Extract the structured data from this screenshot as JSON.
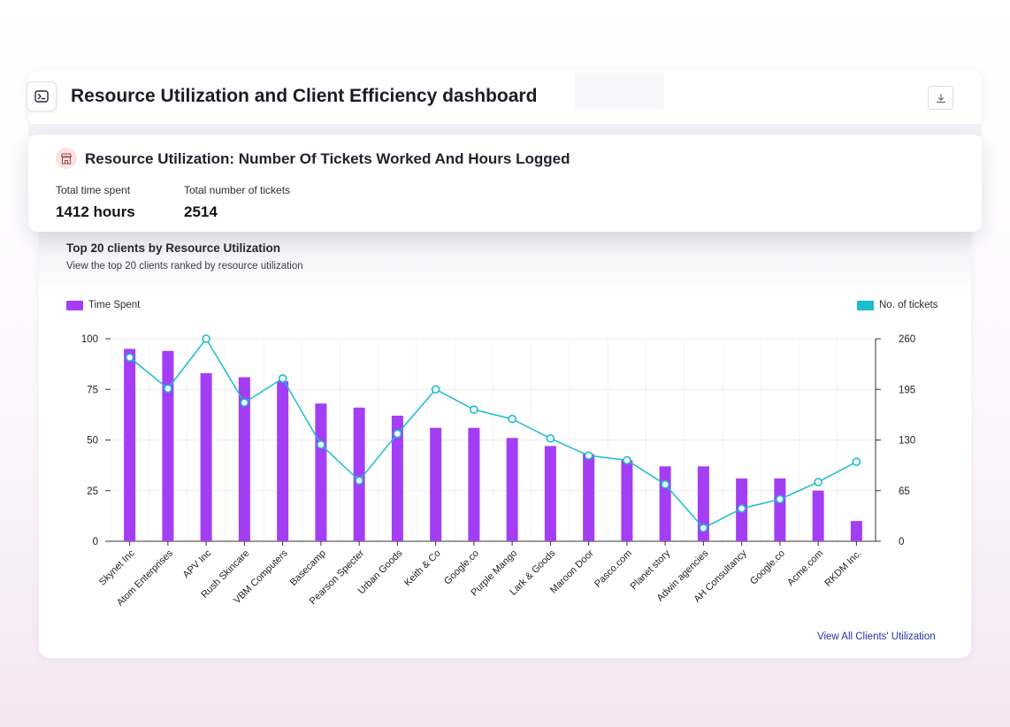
{
  "header": {
    "title": "Resource Utilization and Client Efficiency dashboard",
    "menu_icon": "terminal-panel-icon",
    "download_icon": "download-icon"
  },
  "summary": {
    "icon": "store-icon",
    "title": "Resource Utilization: Number Of Tickets Worked And Hours Logged",
    "metrics": [
      {
        "label": "Total time spent",
        "value": "1412 hours"
      },
      {
        "label": "Total number of tickets",
        "value": "2514"
      }
    ]
  },
  "chart_section": {
    "title": "Top 20 clients by Resource Utilization",
    "subtitle": "View the top 20 clients ranked by resource utilization",
    "view_all_label": "View All Clients' Utilization"
  },
  "colors": {
    "bar": "#a33ef5",
    "line": "#1cbdcc",
    "link": "#2434a0"
  },
  "chart_data": {
    "type": "bar+line",
    "categories": [
      "Skynet Inc",
      "Atom Enterprises",
      "APV Inc",
      "Rush Skincare",
      "VBM Computers",
      "Basecamp",
      "Pearson Specter",
      "Urban Goods",
      "Keith & Co",
      "Google.co",
      "Purple Mango",
      "Lark & Goods",
      "Maroon Door",
      "Pasco.com",
      "Planet story",
      "Adwin agencies",
      "AH Consultancy",
      "Google.co",
      "Acme.com",
      "RKDM Inc."
    ],
    "series": [
      {
        "name": "Time Spent",
        "type": "bar",
        "axis": "left",
        "values": [
          95,
          94,
          83,
          81,
          79,
          68,
          66,
          62,
          56,
          56,
          51,
          47,
          43,
          40,
          37,
          37,
          31,
          31,
          25,
          10
        ]
      },
      {
        "name": "No. of tickets",
        "type": "line",
        "axis": "right",
        "values": [
          236,
          196,
          260,
          178,
          209,
          124,
          78,
          138,
          195,
          169,
          157,
          132,
          110,
          104,
          73,
          17,
          42,
          54,
          76,
          102
        ]
      }
    ],
    "y_left": {
      "min": 0,
      "max": 100,
      "ticks": [
        0,
        25,
        50,
        75,
        100
      ]
    },
    "y_right": {
      "min": 0,
      "max": 260,
      "ticks": [
        0,
        65,
        130,
        195,
        260
      ]
    },
    "legend": "top",
    "grid": true
  }
}
